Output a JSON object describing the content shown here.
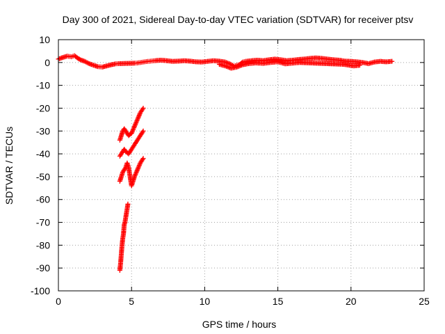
{
  "chart_data": {
    "type": "scatter",
    "title": "Day 300 of 2021, Sidereal Day-to-day VTEC variation (SDTVAR) for receiver ptsv",
    "xlabel": "GPS time / hours",
    "ylabel": "SDTVAR / TECUs",
    "xlim": [
      0,
      25
    ],
    "ylim": [
      -100,
      10
    ],
    "xticks": [
      0,
      5,
      10,
      15,
      20,
      25
    ],
    "yticks": [
      10,
      0,
      -10,
      -20,
      -30,
      -40,
      -50,
      -60,
      -70,
      -80,
      -90,
      -100
    ],
    "grid": true,
    "legend": "none",
    "marker": "+",
    "series": [
      {
        "name": "main band",
        "color": "#ff0000",
        "points": [
          [
            0.0,
            1.5
          ],
          [
            0.3,
            2.2
          ],
          [
            0.6,
            2.8
          ],
          [
            0.9,
            2.5
          ],
          [
            1.1,
            3.0
          ],
          [
            1.3,
            2.0
          ],
          [
            1.5,
            1.2
          ],
          [
            1.8,
            0.5
          ],
          [
            2.1,
            -0.5
          ],
          [
            2.4,
            -1.2
          ],
          [
            2.7,
            -1.8
          ],
          [
            3.0,
            -2.0
          ],
          [
            3.3,
            -1.5
          ],
          [
            3.6,
            -1.0
          ],
          [
            3.9,
            -0.6
          ],
          [
            4.1,
            -0.5
          ],
          [
            5.2,
            -0.3
          ],
          [
            5.4,
            -0.2
          ],
          [
            5.6,
            0.0
          ],
          [
            5.8,
            0.2
          ],
          [
            6.0,
            0.4
          ],
          [
            6.3,
            0.6
          ],
          [
            6.6,
            0.8
          ],
          [
            7.0,
            1.0
          ],
          [
            7.4,
            0.8
          ],
          [
            7.8,
            0.5
          ],
          [
            8.2,
            0.6
          ],
          [
            8.6,
            0.8
          ],
          [
            9.0,
            0.6
          ],
          [
            9.4,
            0.3
          ],
          [
            9.8,
            0.2
          ],
          [
            10.2,
            0.5
          ],
          [
            10.6,
            0.8
          ],
          [
            11.0,
            0.6
          ],
          [
            11.4,
            0.2
          ],
          [
            11.8,
            -0.8
          ],
          [
            12.0,
            -1.5
          ],
          [
            12.2,
            -1.2
          ],
          [
            12.4,
            -0.8
          ],
          [
            12.6,
            0.2
          ],
          [
            12.8,
            0.5
          ],
          [
            13.2,
            0.8
          ],
          [
            13.6,
            1.0
          ],
          [
            14.0,
            0.8
          ],
          [
            14.4,
            1.2
          ],
          [
            14.8,
            1.5
          ],
          [
            15.2,
            1.2
          ],
          [
            15.6,
            0.8
          ],
          [
            16.0,
            1.0
          ],
          [
            16.4,
            1.3
          ],
          [
            16.8,
            1.5
          ],
          [
            17.2,
            1.8
          ],
          [
            17.6,
            2.0
          ],
          [
            18.0,
            1.8
          ],
          [
            18.4,
            1.5
          ],
          [
            18.8,
            1.2
          ],
          [
            19.2,
            1.0
          ],
          [
            19.6,
            0.6
          ],
          [
            20.0,
            0.5
          ],
          [
            20.4,
            0.3
          ],
          [
            20.8,
            0.0
          ],
          [
            21.2,
            -0.5
          ],
          [
            21.6,
            0.2
          ],
          [
            22.0,
            0.5
          ],
          [
            22.4,
            0.3
          ],
          [
            22.8,
            0.5
          ]
        ]
      },
      {
        "name": "secondary band",
        "color": "#ff0000",
        "points": [
          [
            11.0,
            -0.8
          ],
          [
            11.4,
            -1.5
          ],
          [
            11.8,
            -2.5
          ],
          [
            12.2,
            -2.0
          ],
          [
            12.6,
            -1.0
          ],
          [
            13.0,
            -0.5
          ],
          [
            13.5,
            -0.2
          ],
          [
            14.0,
            -0.4
          ],
          [
            14.5,
            0.0
          ],
          [
            15.0,
            0.3
          ],
          [
            15.5,
            -0.6
          ],
          [
            16.0,
            -0.3
          ],
          [
            16.5,
            0.0
          ],
          [
            19.5,
            -0.8
          ],
          [
            20.2,
            -1.5
          ],
          [
            20.6,
            -1.2
          ]
        ]
      },
      {
        "name": "descending arc",
        "color": "#ff0000",
        "points": [
          [
            4.2,
            -91
          ],
          [
            4.25,
            -88
          ],
          [
            4.3,
            -84
          ],
          [
            4.35,
            -80
          ],
          [
            4.4,
            -77
          ],
          [
            4.45,
            -75
          ],
          [
            4.5,
            -71
          ],
          [
            4.55,
            -70
          ],
          [
            4.6,
            -68
          ],
          [
            4.65,
            -66
          ],
          [
            4.7,
            -64
          ],
          [
            4.75,
            -62
          ]
        ]
      },
      {
        "name": "arc upper",
        "color": "#ff0000",
        "points": [
          [
            4.2,
            -34
          ],
          [
            4.3,
            -32
          ],
          [
            4.4,
            -30
          ],
          [
            4.5,
            -29
          ],
          [
            4.6,
            -30
          ],
          [
            4.8,
            -32
          ],
          [
            5.0,
            -31
          ],
          [
            5.2,
            -28
          ],
          [
            5.4,
            -25
          ],
          [
            5.6,
            -22
          ],
          [
            5.8,
            -20
          ]
        ]
      },
      {
        "name": "arc middle",
        "color": "#ff0000",
        "points": [
          [
            4.2,
            -41
          ],
          [
            4.3,
            -40
          ],
          [
            4.4,
            -39
          ],
          [
            4.5,
            -38
          ],
          [
            4.6,
            -39
          ],
          [
            4.8,
            -40
          ],
          [
            5.0,
            -38
          ],
          [
            5.2,
            -36
          ],
          [
            5.4,
            -34
          ],
          [
            5.6,
            -32
          ],
          [
            5.8,
            -30
          ]
        ]
      },
      {
        "name": "arc lower",
        "color": "#ff0000",
        "points": [
          [
            4.2,
            -52
          ],
          [
            4.3,
            -50
          ],
          [
            4.4,
            -48
          ],
          [
            4.5,
            -47
          ],
          [
            4.6,
            -46
          ],
          [
            4.7,
            -44
          ],
          [
            4.8,
            -46
          ],
          [
            4.9,
            -50
          ],
          [
            5.0,
            -54
          ],
          [
            5.1,
            -52
          ],
          [
            5.2,
            -50
          ],
          [
            5.4,
            -47
          ],
          [
            5.6,
            -44
          ],
          [
            5.8,
            -42
          ]
        ]
      }
    ]
  }
}
